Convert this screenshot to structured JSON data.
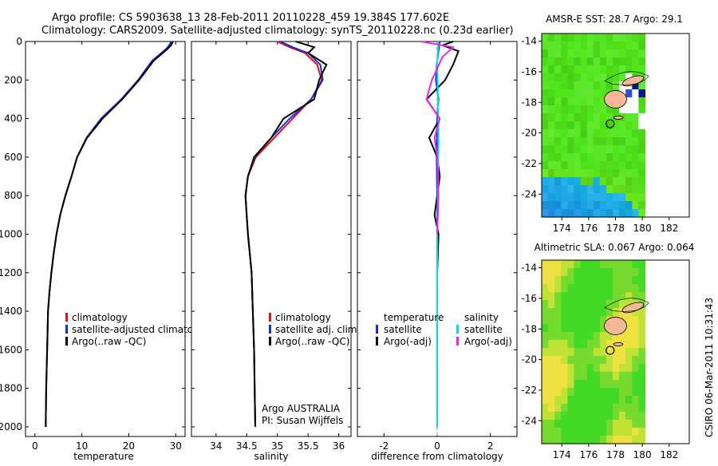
{
  "header": {
    "line1": "Argo profile: CS 5903638_13 28-Feb-2011 20110228_459 19.384S 177.602E",
    "line2": "Climatology: CARS2009. Satellite-adjusted climatology: synTS_20110228.nc (0.23d earlier)"
  },
  "side_stamp": "CSIRO 06-Mar-2011 10:31:43",
  "colors": {
    "climatology": "#e01010",
    "satellite": "#1030e0",
    "argo": "#000000",
    "sal_satellite": "#00e0e0",
    "sal_argo": "#ee22ee"
  },
  "chart_data": [
    {
      "id": "temperature",
      "type": "line",
      "xlabel": "temperature",
      "ylabel": "",
      "xlim": [
        -2,
        32
      ],
      "ylim": [
        2050,
        0
      ],
      "xticks": [
        0,
        10,
        20,
        30
      ],
      "yticks": [
        0,
        200,
        400,
        600,
        800,
        1000,
        1200,
        1400,
        1600,
        1800,
        2000
      ],
      "legend": [
        "climatology",
        "satellite-adjusted climatology",
        "Argo(..raw -QC)"
      ],
      "annotation": [],
      "series": [
        {
          "name": "climatology",
          "color": "#e01010",
          "x": [
            29.3,
            28.8,
            28.0,
            25.0,
            22.0,
            18.5,
            14.2,
            11.0,
            9.0,
            7.8,
            6.5,
            5.4,
            4.6,
            4.0,
            3.5,
            3.1,
            2.8,
            2.6,
            2.4,
            2.3
          ],
          "y": [
            0,
            20,
            40,
            100,
            200,
            300,
            400,
            500,
            600,
            700,
            800,
            900,
            1000,
            1100,
            1200,
            1300,
            1400,
            1600,
            1800,
            2000
          ]
        },
        {
          "name": "satellite",
          "color": "#1030e0",
          "x": [
            29.1,
            28.6,
            27.9,
            25.0,
            22.0,
            18.4,
            14.1,
            11.0,
            9.0,
            7.8,
            6.5,
            5.4,
            4.6,
            4.0,
            3.5,
            3.1,
            2.8,
            2.6,
            2.4,
            2.3
          ],
          "y": [
            0,
            20,
            40,
            100,
            200,
            300,
            400,
            500,
            600,
            700,
            800,
            900,
            1000,
            1100,
            1200,
            1300,
            1400,
            1600,
            1800,
            2000
          ]
        },
        {
          "name": "argo",
          "color": "#000000",
          "x": [
            29.4,
            29.0,
            28.2,
            25.3,
            22.2,
            18.6,
            14.4,
            11.1,
            9.0,
            7.8,
            6.5,
            5.4,
            4.6,
            4.0,
            3.5,
            3.1,
            2.8,
            2.6,
            2.4,
            2.3
          ],
          "y": [
            0,
            20,
            40,
            100,
            200,
            300,
            400,
            500,
            600,
            700,
            800,
            900,
            1000,
            1100,
            1200,
            1300,
            1400,
            1600,
            1800,
            2000
          ]
        }
      ]
    },
    {
      "id": "salinity",
      "type": "line",
      "xlabel": "salinity",
      "ylabel": "",
      "xlim": [
        33.6,
        36.2
      ],
      "ylim": [
        2050,
        0
      ],
      "xticks": [
        34,
        34.5,
        35,
        35.5,
        36
      ],
      "yticks": [
        0,
        200,
        400,
        600,
        800,
        1000,
        1200,
        1400,
        1600,
        1800,
        2000
      ],
      "legend": [
        "climatology",
        "satellite adj. clim.",
        "Argo(..raw -QC)"
      ],
      "annotation": [
        "Argo AUSTRALIA",
        "PI: Susan Wijffels"
      ],
      "series": [
        {
          "name": "climatology",
          "color": "#e01010",
          "x": [
            35.0,
            35.2,
            35.45,
            35.65,
            35.72,
            35.55,
            35.25,
            34.95,
            34.65,
            34.52,
            34.48,
            34.5,
            34.52,
            34.55,
            34.58,
            34.6,
            34.62,
            34.63,
            34.64
          ],
          "y": [
            0,
            30,
            60,
            120,
            200,
            300,
            400,
            500,
            600,
            700,
            800,
            900,
            1000,
            1100,
            1200,
            1400,
            1600,
            1800,
            2000
          ]
        },
        {
          "name": "satellite",
          "color": "#1030e0",
          "x": [
            35.05,
            35.25,
            35.5,
            35.7,
            35.74,
            35.55,
            35.2,
            34.9,
            34.63,
            34.52,
            34.48,
            34.5,
            34.52,
            34.55,
            34.58,
            34.6,
            34.62,
            34.63,
            34.64
          ],
          "y": [
            0,
            30,
            60,
            120,
            200,
            300,
            400,
            500,
            600,
            700,
            800,
            900,
            1000,
            1100,
            1200,
            1400,
            1600,
            1800,
            2000
          ]
        },
        {
          "name": "argo",
          "color": "#000000",
          "x": [
            35.3,
            35.6,
            35.5,
            35.8,
            35.68,
            35.6,
            35.1,
            34.9,
            34.62,
            34.52,
            34.48,
            34.5,
            34.52,
            34.55,
            34.58,
            34.6,
            34.62,
            34.63,
            34.64
          ],
          "y": [
            0,
            30,
            60,
            120,
            200,
            300,
            400,
            500,
            600,
            700,
            800,
            900,
            1000,
            1100,
            1200,
            1400,
            1600,
            1800,
            2000
          ]
        }
      ]
    },
    {
      "id": "difference",
      "type": "line",
      "xlabel": "difference from climatology",
      "ylabel": "",
      "xlim": [
        -3,
        3
      ],
      "ylim": [
        2050,
        0
      ],
      "xticks": [
        -2,
        0,
        2
      ],
      "yticks": [
        0,
        200,
        400,
        600,
        800,
        1000,
        1200,
        1400,
        1600,
        1800,
        2000
      ],
      "legend": [
        "temperature",
        "satellite",
        "Argo(-adj)",
        "salinity",
        "satellite",
        "Argo(-adj)"
      ],
      "annotation": [],
      "series": [
        {
          "name": "temperature satellite",
          "color": "#1030e0",
          "x": [
            0.1,
            0.05,
            0.0,
            -0.05,
            0.05,
            0.0,
            -0.02,
            0.0,
            0.0,
            0.0,
            0.0,
            0.0
          ],
          "y": [
            0,
            50,
            100,
            200,
            300,
            400,
            600,
            800,
            1000,
            1400,
            1800,
            2000
          ]
        },
        {
          "name": "temperature argo",
          "color": "#000000",
          "x": [
            0.6,
            0.2,
            0.8,
            0.6,
            0.3,
            -0.4,
            0.1,
            -0.3,
            0.0,
            0.1,
            0.0,
            -0.1,
            0.05,
            0.0,
            0.0,
            0.0
          ],
          "y": [
            0,
            20,
            50,
            120,
            200,
            300,
            400,
            500,
            600,
            700,
            800,
            900,
            1000,
            1200,
            1600,
            2000
          ]
        },
        {
          "name": "salinity satellite",
          "color": "#00e0e0",
          "x": [
            0.05,
            0.0,
            0.03,
            0.05,
            0.03,
            0.0,
            0.0,
            0.0
          ],
          "y": [
            0,
            100,
            300,
            500,
            700,
            1000,
            1500,
            2000
          ]
        },
        {
          "name": "salinity argo",
          "color": "#ee22ee",
          "x": [
            -0.6,
            0.6,
            0.2,
            -0.2,
            -0.4,
            0.1,
            -0.1,
            0.0,
            0.05,
            0.0
          ],
          "y": [
            0,
            30,
            80,
            200,
            300,
            400,
            500,
            600,
            800,
            1000
          ]
        }
      ]
    },
    {
      "id": "sst_map",
      "type": "heatmap",
      "title": "AMSR-E SST: 28.7 Argo: 29.1",
      "xlim": [
        172.5,
        183.5
      ],
      "ylim": [
        -25.5,
        -13.5
      ],
      "xticks": [
        174,
        176,
        178,
        180,
        182
      ],
      "yticks": [
        -14,
        -16,
        -18,
        -20,
        -22,
        -24
      ],
      "float_position": [
        177.6,
        -19.4
      ]
    },
    {
      "id": "sla_map",
      "type": "heatmap",
      "title": "Altimetric SLA: 0.067 Argo: 0.064",
      "xlim": [
        172.5,
        183.5
      ],
      "ylim": [
        -25.5,
        -13.5
      ],
      "xticks": [
        174,
        176,
        178,
        180,
        182
      ],
      "yticks": [
        -14,
        -16,
        -18,
        -20,
        -22,
        -24
      ],
      "float_position": [
        177.6,
        -19.4
      ]
    }
  ]
}
